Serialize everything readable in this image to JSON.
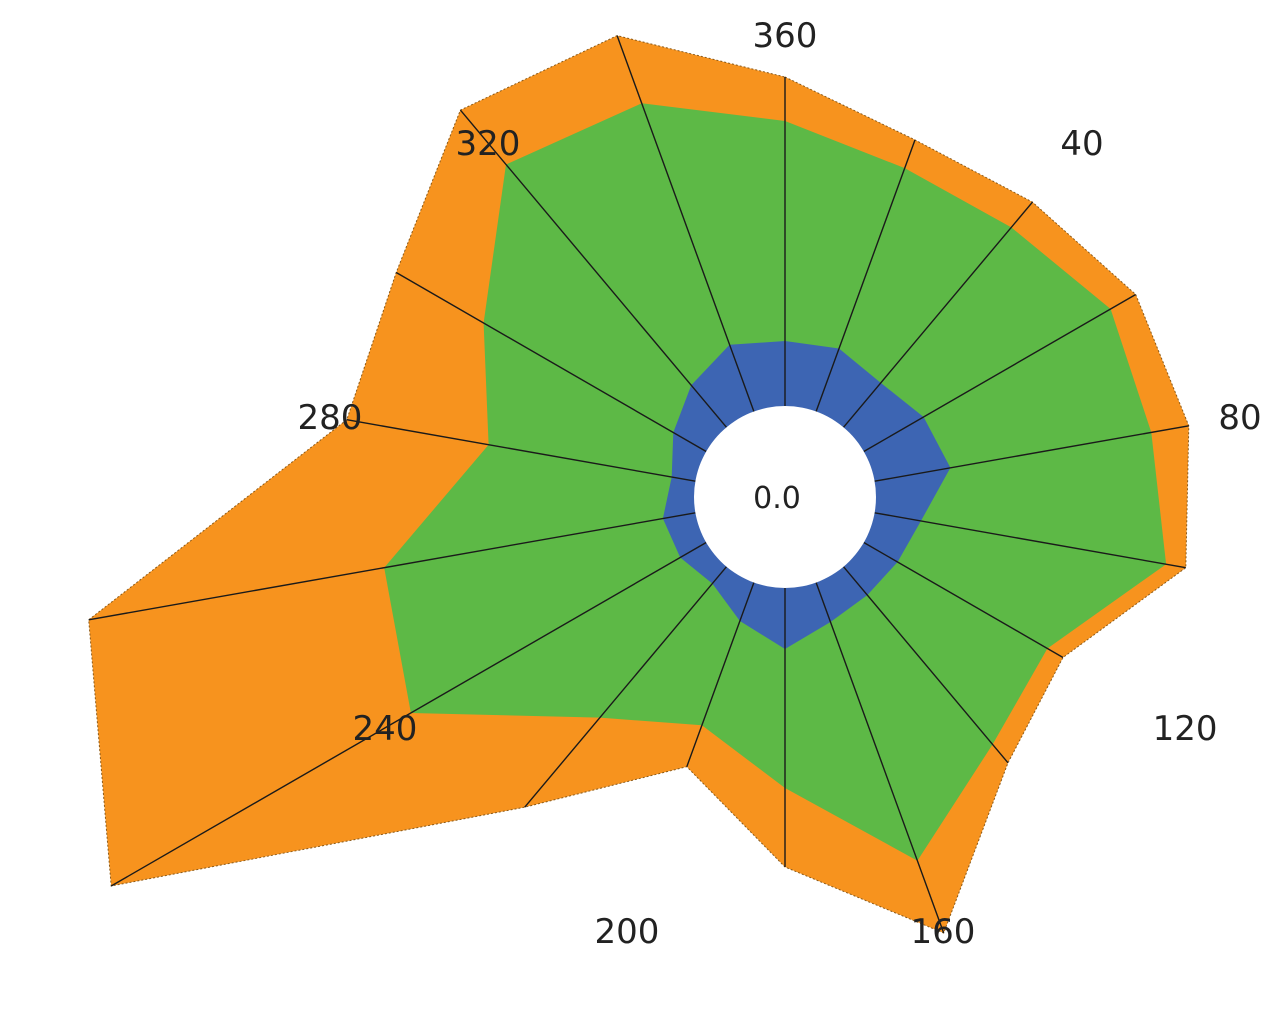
{
  "chart_data": {
    "type": "radar-stacked-area",
    "angle_unit": "degrees",
    "angles": [
      0,
      20,
      40,
      60,
      80,
      100,
      120,
      140,
      160,
      180,
      200,
      220,
      240,
      260,
      280,
      300,
      320,
      340
    ],
    "tick_labels": [
      "360",
      "40",
      "80",
      "120",
      "160",
      "200",
      "240",
      "280",
      "320"
    ],
    "tick_angles": [
      0,
      40,
      80,
      120,
      160,
      200,
      240,
      280,
      320
    ],
    "center_label": "0.0",
    "hole_radius": 91,
    "series": [
      {
        "color": "#3d65b3",
        "outer_radius": [
          156,
          158,
          149,
          160,
          168,
          138,
          130,
          128,
          133,
          152,
          132,
          113,
          121,
          124,
          115,
          129,
          146,
          162
        ]
      },
      {
        "color": "#5db946",
        "outer_radius": [
          376,
          350,
          352,
          376,
          372,
          387,
          303,
          323,
          387,
          291,
          243,
          288,
          432,
          407,
          301,
          348,
          434,
          419
        ]
      },
      {
        "color": "#f7931e",
        "outer_radius": [
          420,
          380,
          385,
          405,
          410,
          407,
          321,
          347,
          464,
          370,
          287,
          405,
          778,
          707,
          445,
          449,
          505,
          491
        ]
      }
    ],
    "grid": false,
    "legend": "none"
  }
}
